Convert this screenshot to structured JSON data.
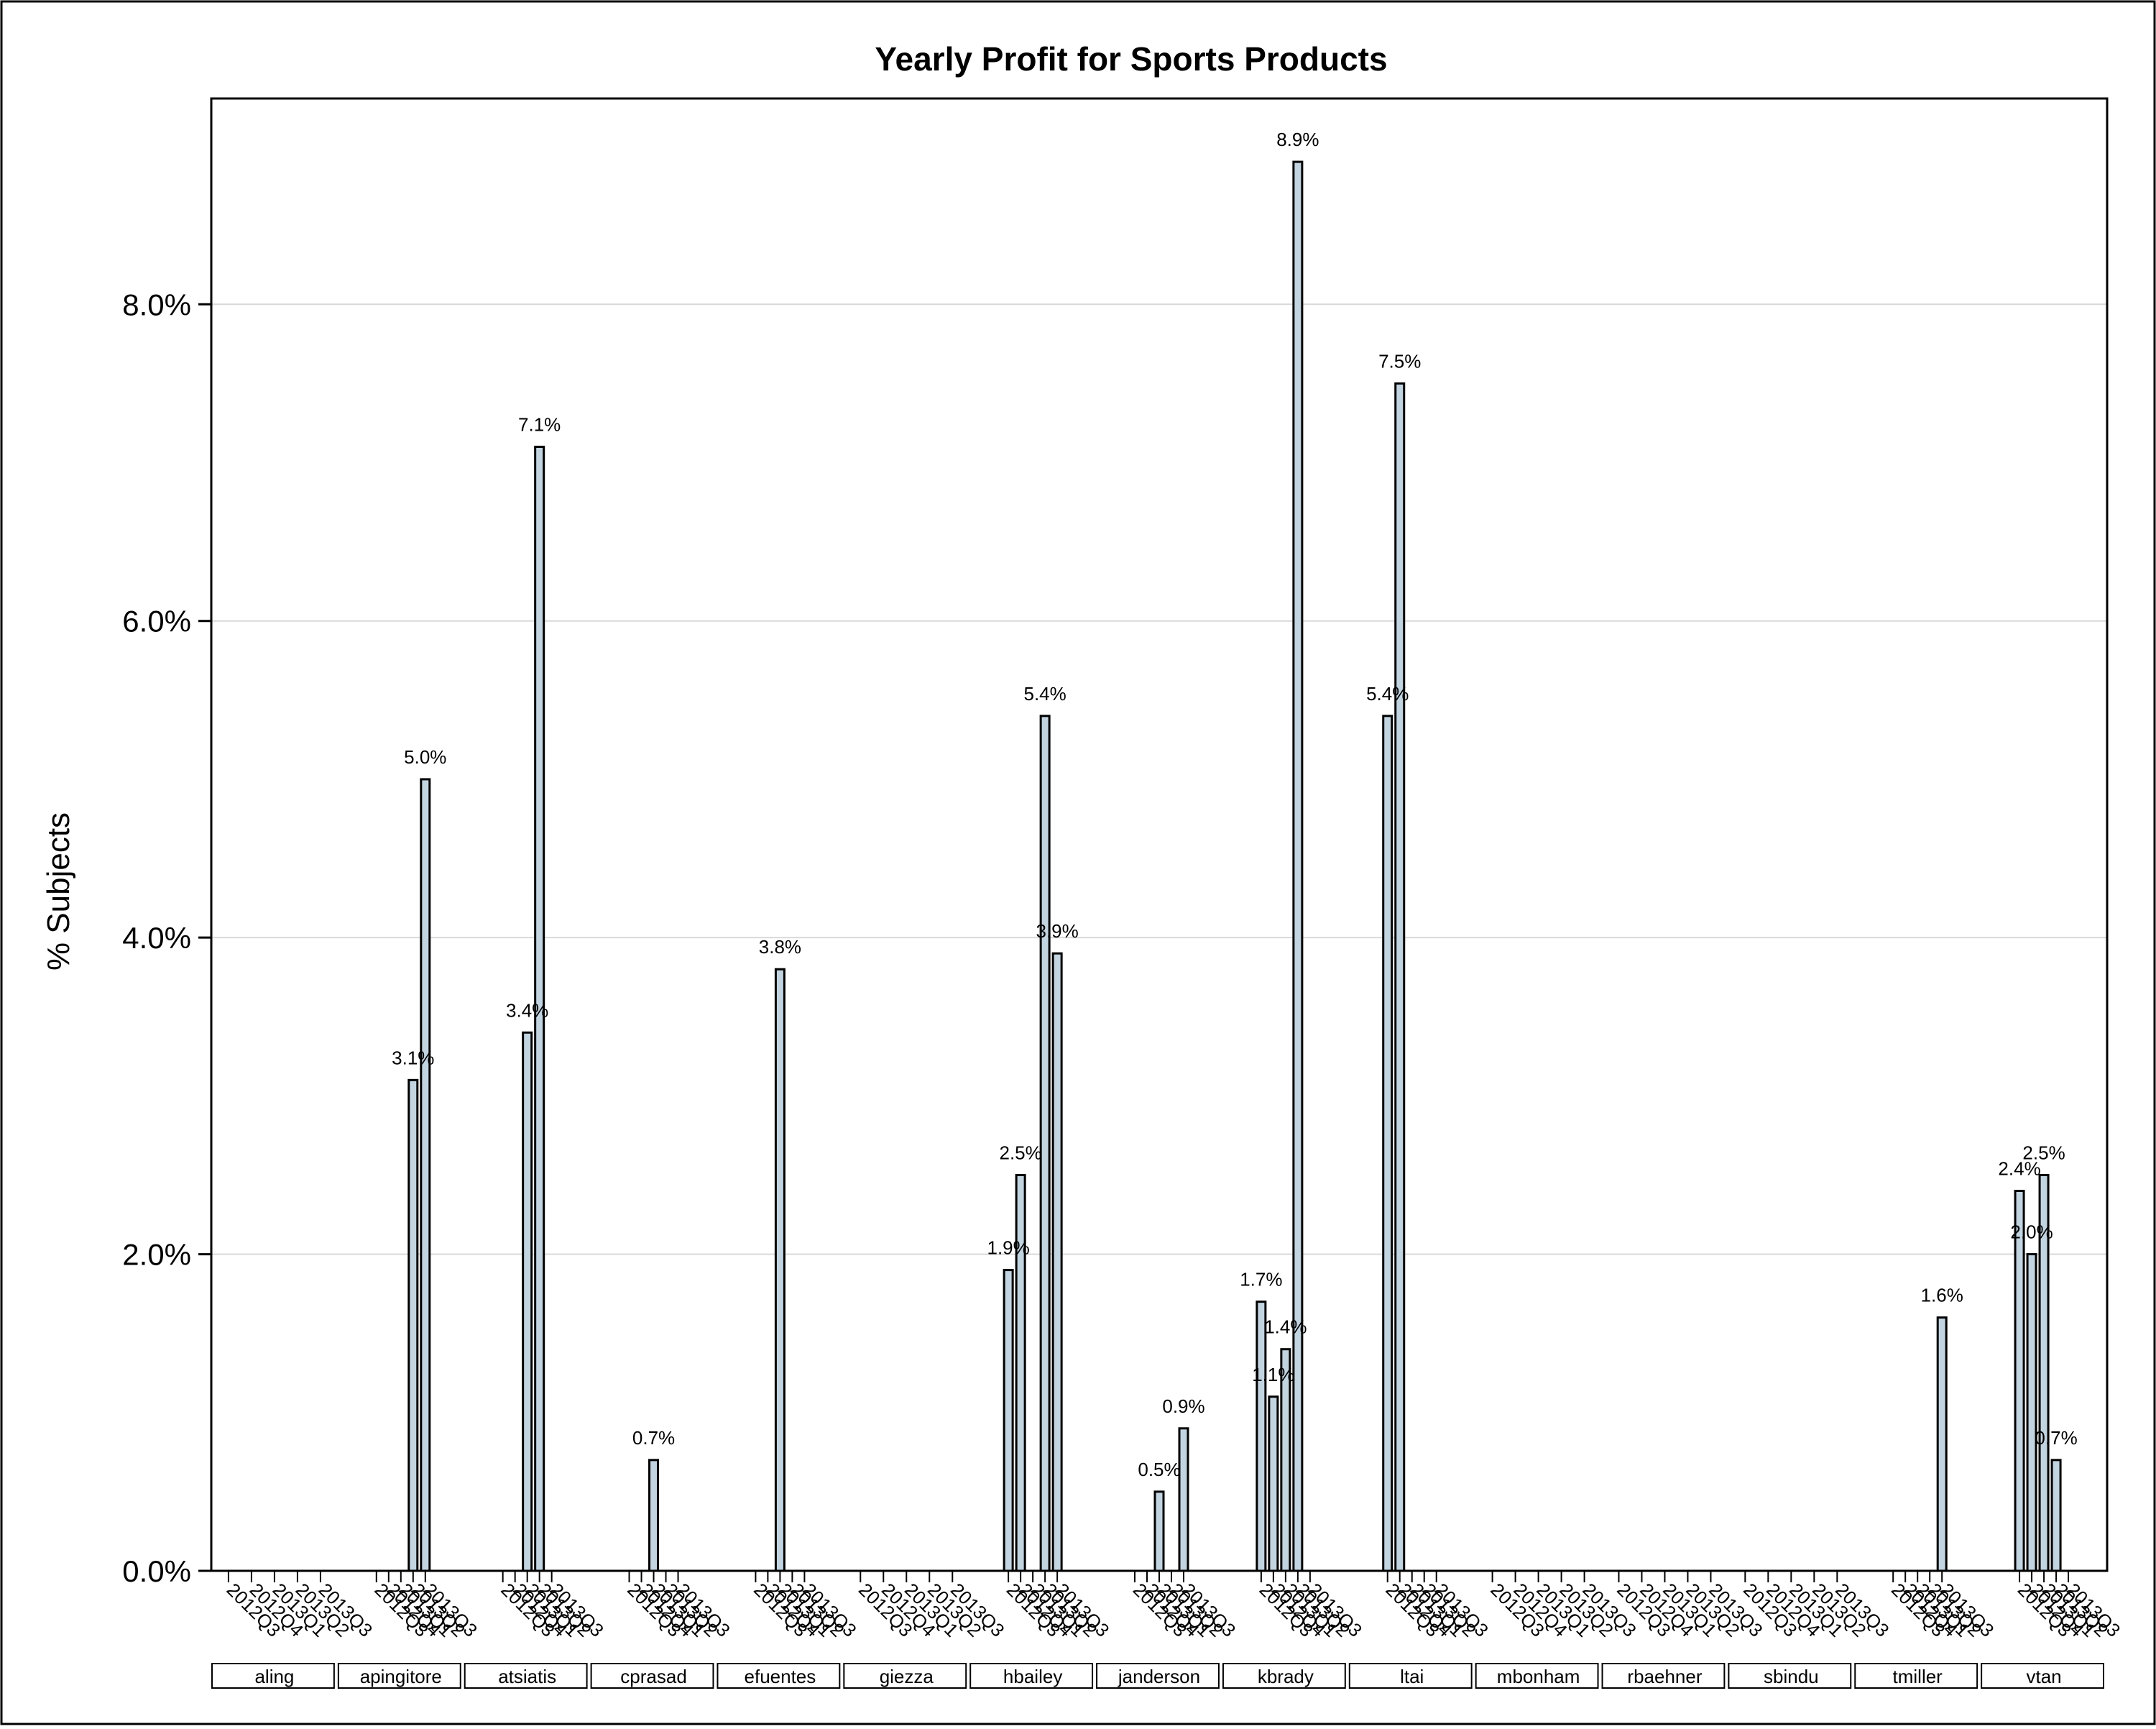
{
  "chart_data": {
    "type": "bar",
    "title": "Yearly Profit for Sports Products",
    "ylabel": "% Subjects",
    "xlabel": "",
    "ylim": [
      0,
      9.3
    ],
    "yticks": [
      "0.0%",
      "2.0%",
      "4.0%",
      "6.0%",
      "8.0%"
    ],
    "ytick_values": [
      0,
      2,
      4,
      6,
      8
    ],
    "grid": "horizontal",
    "bar_color": "#c3d4e1",
    "groups": [
      {
        "name": "aling",
        "categories": [
          "2012Q3",
          "2012Q4",
          "2013Q1",
          "2013Q2",
          "2013Q3"
        ],
        "values": [
          null,
          null,
          null,
          null,
          null
        ],
        "labels": [
          null,
          null,
          null,
          null,
          null
        ]
      },
      {
        "name": "apingitore",
        "categories": [
          "2012Q3",
          "2012Q4",
          "2013Q1",
          "2013Q2",
          "2013Q3"
        ],
        "values": [
          null,
          null,
          null,
          3.1,
          5.0
        ],
        "labels": [
          null,
          null,
          null,
          "3.1%",
          "5.0%"
        ]
      },
      {
        "name": "atsiatis",
        "categories": [
          "2012Q3",
          "2012Q4",
          "2013Q1",
          "2013Q2",
          "2013Q3"
        ],
        "values": [
          null,
          null,
          3.4,
          7.1,
          null
        ],
        "labels": [
          null,
          null,
          "3.4%",
          "7.1%",
          null
        ]
      },
      {
        "name": "cprasad",
        "categories": [
          "2012Q3",
          "2012Q4",
          "2013Q1",
          "2013Q2",
          "2013Q3"
        ],
        "values": [
          null,
          null,
          0.7,
          null,
          null
        ],
        "labels": [
          null,
          null,
          "0.7%",
          null,
          null
        ]
      },
      {
        "name": "efuentes",
        "categories": [
          "2012Q3",
          "2012Q4",
          "2013Q1",
          "2013Q2",
          "2013Q3"
        ],
        "values": [
          null,
          null,
          3.8,
          null,
          null
        ],
        "labels": [
          null,
          null,
          "3.8%",
          null,
          null
        ]
      },
      {
        "name": "giezza",
        "categories": [
          "2012Q3",
          "2012Q4",
          "2013Q1",
          "2013Q2",
          "2013Q3"
        ],
        "values": [
          null,
          null,
          null,
          null,
          null
        ],
        "labels": [
          null,
          null,
          null,
          null,
          null
        ]
      },
      {
        "name": "hbailey",
        "categories": [
          "2012Q3",
          "2012Q4",
          "2013Q1",
          "2013Q2",
          "2013Q3"
        ],
        "values": [
          1.9,
          2.5,
          null,
          5.4,
          3.9
        ],
        "labels": [
          "1.9%",
          "2.5%",
          null,
          "5.4%",
          "3.9%"
        ]
      },
      {
        "name": "janderson",
        "categories": [
          "2012Q3",
          "2012Q4",
          "2013Q1",
          "2013Q2",
          "2013Q3"
        ],
        "values": [
          null,
          null,
          0.5,
          null,
          0.9
        ],
        "labels": [
          null,
          null,
          "0.5%",
          null,
          "0.9%"
        ]
      },
      {
        "name": "kbrady",
        "categories": [
          "2012Q3",
          "2012Q4",
          "2013Q1",
          "2013Q2",
          "2013Q3"
        ],
        "values": [
          1.7,
          1.1,
          1.4,
          8.9,
          null
        ],
        "labels": [
          "1.7%",
          "1.1%",
          "1.4%",
          "8.9%",
          null
        ]
      },
      {
        "name": "ltai",
        "categories": [
          "2012Q3",
          "2012Q4",
          "2013Q1",
          "2013Q2",
          "2013Q3"
        ],
        "values": [
          5.4,
          7.5,
          null,
          null,
          null
        ],
        "labels": [
          "5.4%",
          "7.5%",
          null,
          null,
          null
        ]
      },
      {
        "name": "mbonham",
        "categories": [
          "2012Q3",
          "2012Q4",
          "2013Q1",
          "2013Q2",
          "2013Q3"
        ],
        "values": [
          null,
          null,
          null,
          null,
          null
        ],
        "labels": [
          null,
          null,
          null,
          null,
          null
        ]
      },
      {
        "name": "rbaehner",
        "categories": [
          "2012Q3",
          "2012Q4",
          "2013Q1",
          "2013Q2",
          "2013Q3"
        ],
        "values": [
          null,
          null,
          null,
          null,
          null
        ],
        "labels": [
          null,
          null,
          null,
          null,
          null
        ]
      },
      {
        "name": "sbindu",
        "categories": [
          "2012Q3",
          "2012Q4",
          "2013Q1",
          "2013Q2",
          "2013Q3"
        ],
        "values": [
          null,
          null,
          null,
          null,
          null
        ],
        "labels": [
          null,
          null,
          null,
          null,
          null
        ]
      },
      {
        "name": "tmiller",
        "categories": [
          "2012Q3",
          "2012Q4",
          "2013Q1",
          "2013Q2",
          "2013Q3"
        ],
        "values": [
          null,
          null,
          null,
          null,
          1.6
        ],
        "labels": [
          null,
          null,
          null,
          null,
          "1.6%"
        ]
      },
      {
        "name": "vtan",
        "categories": [
          "2012Q3",
          "2012Q4",
          "2013Q1",
          "2013Q2",
          "2013Q3"
        ],
        "values": [
          2.4,
          2.0,
          2.5,
          0.7,
          null
        ],
        "labels": [
          "2.4%",
          "2.0%",
          "2.5%",
          "0.7%",
          null
        ]
      }
    ]
  }
}
